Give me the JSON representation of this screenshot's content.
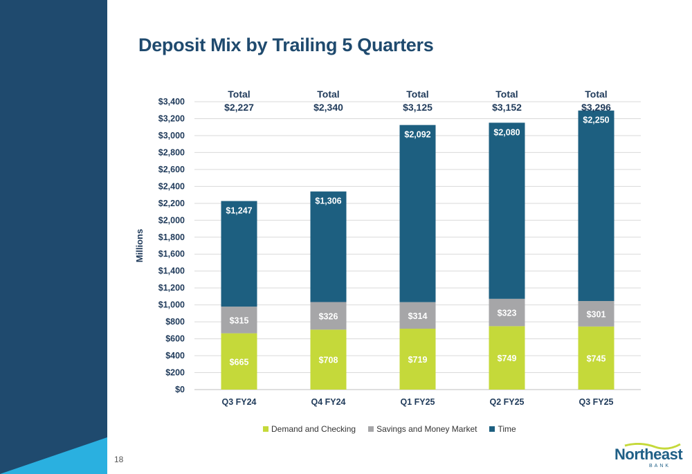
{
  "slide": {
    "title": "Deposit Mix by Trailing 5 Quarters",
    "page_number": "18"
  },
  "logo": {
    "name": "Northeast",
    "sub": "BANK"
  },
  "colors": {
    "demand": "#c5d93a",
    "savings": "#a6a6a8",
    "time": "#1d5f80",
    "grid": "#d9d9d9",
    "panel": "#1f4a6e",
    "accent": "#2ab0e0"
  },
  "chart_data": {
    "type": "bar",
    "stacked": true,
    "title": "",
    "xlabel": "",
    "ylabel": "Millions",
    "ylim": [
      0,
      3400
    ],
    "yticks": [
      0,
      200,
      400,
      600,
      800,
      1000,
      1200,
      1400,
      1600,
      1800,
      2000,
      2200,
      2400,
      2600,
      2800,
      3000,
      3200,
      3400
    ],
    "ytick_labels": [
      "$0",
      "$200",
      "$400",
      "$600",
      "$800",
      "$1,000",
      "$1,200",
      "$1,400",
      "$1,600",
      "$1,800",
      "$2,000",
      "$2,200",
      "$2,400",
      "$2,600",
      "$2,800",
      "$3,000",
      "$3,200",
      "$3,400"
    ],
    "categories": [
      "Q3 FY24",
      "Q4 FY24",
      "Q1 FY25",
      "Q2 FY25",
      "Q3 FY25"
    ],
    "series": [
      {
        "name": "Demand and Checking",
        "values": [
          665,
          708,
          719,
          749,
          745
        ],
        "labels": [
          "$665",
          "$708",
          "$719",
          "$749",
          "$745"
        ],
        "color": "#c5d93a"
      },
      {
        "name": "Savings and Money Market",
        "values": [
          315,
          326,
          314,
          323,
          301
        ],
        "labels": [
          "$315",
          "$326",
          "$314",
          "$323",
          "$301"
        ],
        "color": "#a6a6a8"
      },
      {
        "name": "Time",
        "values": [
          1247,
          1306,
          2092,
          2080,
          2250
        ],
        "labels": [
          "$1,247",
          "$1,306",
          "$2,092",
          "$2,080",
          "$2,250"
        ],
        "color": "#1d5f80"
      }
    ],
    "totals_prefix": "Total",
    "totals": [
      "$2,227",
      "$2,340",
      "$3,125",
      "$3,152",
      "$3,296"
    ],
    "grid": true,
    "legend_position": "bottom"
  }
}
